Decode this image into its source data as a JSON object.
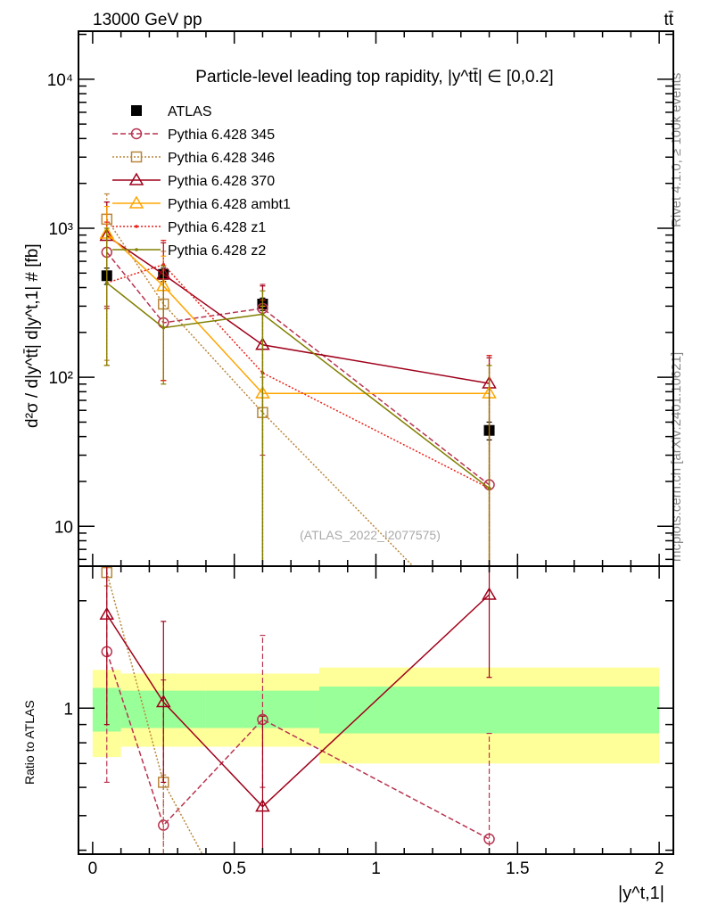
{
  "header": {
    "energy": "13000 GeV pp",
    "process": "tt̄"
  },
  "side": {
    "rivet": "Rivet 4.1.0, ≥ 100k events",
    "mcplots": "mcplots.cern.ch [arXiv:2401.10621]"
  },
  "chart_data": [
    {
      "type": "line",
      "title": "Particle-level leading top rapidity, |y^tt̄| ∈ [0,0.2]",
      "ylabel": "d²σ / d|y^tt̄| d|y^t,1| # [fb]",
      "yscale": "log",
      "ylim": [
        5.4,
        21000
      ],
      "xlim": [
        -0.05,
        2.05
      ],
      "yticks": [
        {
          "v": 10,
          "label": "10"
        },
        {
          "v": 100,
          "label": "10²"
        },
        {
          "v": 1000,
          "label": "10³"
        },
        {
          "v": 10000,
          "label": "10⁴"
        }
      ],
      "watermark": "(ATLAS_2022_I2077575)",
      "legend_position": "top-left",
      "x": [
        0.05,
        0.25,
        0.6,
        1.4
      ],
      "series": [
        {
          "name": "ATLAS",
          "color": "#000000",
          "marker": "square-filled",
          "dash": "",
          "values": [
            480,
            490,
            310,
            44
          ],
          "err": [
            [
              420,
              540
            ],
            [
              440,
              540
            ],
            [
              280,
              340
            ],
            [
              38,
              50
            ]
          ]
        },
        {
          "name": "Pythia 6.428 345",
          "color": "#b8334f",
          "marker": "circle",
          "dash": "6,3",
          "values": [
            690,
            232,
            290,
            19
          ],
          "err": [
            [
              300,
              1500
            ],
            [
              95,
              560
            ],
            [
              30,
              420
            ],
            [
              2,
              140
            ]
          ]
        },
        {
          "name": "Pythia 6.428 346",
          "color": "#b8863b",
          "marker": "square",
          "dash": "2,2",
          "values": [
            1150,
            310,
            58,
            null
          ],
          "err": [
            [
              130,
              1700
            ],
            [
              95,
              700
            ],
            [
              2,
              100
            ],
            null
          ]
        },
        {
          "name": "Pythia 6.428 370",
          "color": "#a0001a",
          "marker": "triangle",
          "dash": "",
          "values": [
            890,
            490,
            165,
            91
          ],
          "err": [
            [
              290,
              1500
            ],
            [
              95,
              800
            ],
            [
              2,
              410
            ],
            [
              2,
              135
            ]
          ]
        },
        {
          "name": "Pythia 6.428 ambt1",
          "color": "#ffa500",
          "marker": "triangle",
          "dash": "",
          "values": [
            920,
            410,
            78,
            78
          ],
          "err": [
            [
              120,
              1400
            ],
            [
              95,
              650
            ],
            [
              2,
              300
            ],
            [
              2,
              120
            ]
          ]
        },
        {
          "name": "Pythia 6.428 z1",
          "color": "#e8231a",
          "marker": "dot",
          "dash": "2,2",
          "values": [
            430,
            570,
            107,
            18
          ],
          "err": [
            [
              120,
              1100
            ],
            [
              95,
              830
            ],
            [
              2,
              330
            ],
            [
              2,
              140
            ]
          ]
        },
        {
          "name": "Pythia 6.428 z2",
          "color": "#808000",
          "marker": "dot",
          "dash": "",
          "values": [
            430,
            215,
            265,
            18
          ],
          "err": [
            [
              120,
              1000
            ],
            [
              90,
              560
            ],
            [
              2,
              380
            ],
            [
              2,
              120
            ]
          ]
        }
      ]
    },
    {
      "type": "line",
      "ylabel": "Ratio to ATLAS",
      "xlabel": "|y^t,1|",
      "yscale": "log",
      "ylim": [
        0.39,
        2.5
      ],
      "xlim": [
        -0.05,
        2.05
      ],
      "yticks": [
        {
          "v": 1,
          "label": "1"
        }
      ],
      "xticks": [
        {
          "v": 0,
          "label": "0"
        },
        {
          "v": 0.5,
          "label": "0.5"
        },
        {
          "v": 1,
          "label": "1"
        },
        {
          "v": 1.5,
          "label": "1.5"
        },
        {
          "v": 2,
          "label": "2"
        }
      ],
      "bins": [
        [
          0,
          0.1
        ],
        [
          0.1,
          0.4
        ],
        [
          0.4,
          0.8
        ],
        [
          0.8,
          2
        ]
      ],
      "band_stat": [
        [
          0.86,
          1.14
        ],
        [
          0.88,
          1.12
        ],
        [
          0.88,
          1.12
        ],
        [
          0.85,
          1.15
        ]
      ],
      "band_total": [
        [
          0.73,
          1.28
        ],
        [
          0.78,
          1.25
        ],
        [
          0.78,
          1.25
        ],
        [
          0.7,
          1.3
        ]
      ],
      "band_colors": {
        "inner": "#99ff99",
        "outer": "#ffff99"
      },
      "x": [
        0.05,
        0.25,
        0.6,
        1.4
      ],
      "series": [
        {
          "name": "Pythia 6.428 345",
          "color": "#b8334f",
          "marker": "circle",
          "dash": "6,3",
          "values": [
            1.44,
            0.47,
            0.93,
            0.43
          ],
          "err": [
            [
              0.62,
              2.9
            ],
            [
              0.3,
              1.2
            ],
            [
              0.6,
              1.6
            ],
            [
              0.3,
              0.85
            ]
          ]
        },
        {
          "name": "Pythia 6.428 346",
          "color": "#b8863b",
          "marker": "square",
          "dash": "2,2",
          "values": [
            2.4,
            0.62,
            0.19,
            null
          ],
          "err": [
            [
              2.2,
              2.5
            ],
            [
              0.3,
              0.65
            ],
            null,
            null
          ]
        },
        {
          "name": "Pythia 6.428 370",
          "color": "#a0001a",
          "marker": "triangle",
          "dash": "",
          "values": [
            1.83,
            1.04,
            0.53,
            2.08
          ],
          "err": [
            [
              0.9,
              2.5
            ],
            [
              0.62,
              1.75
            ],
            [
              0.3,
              0.95
            ],
            [
              1.22,
              2.5
            ]
          ]
        }
      ]
    }
  ]
}
